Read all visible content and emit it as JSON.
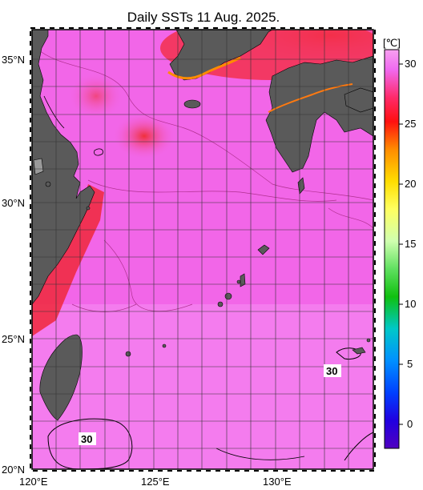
{
  "title": "Daily SSTs 11 Aug. 2025.",
  "map": {
    "lon_range": [
      120,
      134
    ],
    "lat_range": [
      20,
      36
    ],
    "lon_labels": [
      "120°E",
      "125°E",
      "130°E"
    ],
    "lat_labels": [
      "35°N",
      "30°N",
      "25°N",
      "20°N"
    ],
    "contour_labels": [
      "30",
      "30"
    ],
    "colors": {
      "land": "#5a5a5a",
      "sea_base": "#f266e8",
      "warm": "#f0203c",
      "hot": "#f4f4f4"
    }
  },
  "colorbar": {
    "unit": "[℃]",
    "ticks": [
      "30",
      "25",
      "20",
      "15",
      "10",
      "5",
      "0"
    ],
    "stops": [
      "#f06af0",
      "#ff2020",
      "#ff8c00",
      "#ffff00",
      "#50e050",
      "#00c8c8",
      "#0040ff",
      "#4000c0"
    ]
  }
}
